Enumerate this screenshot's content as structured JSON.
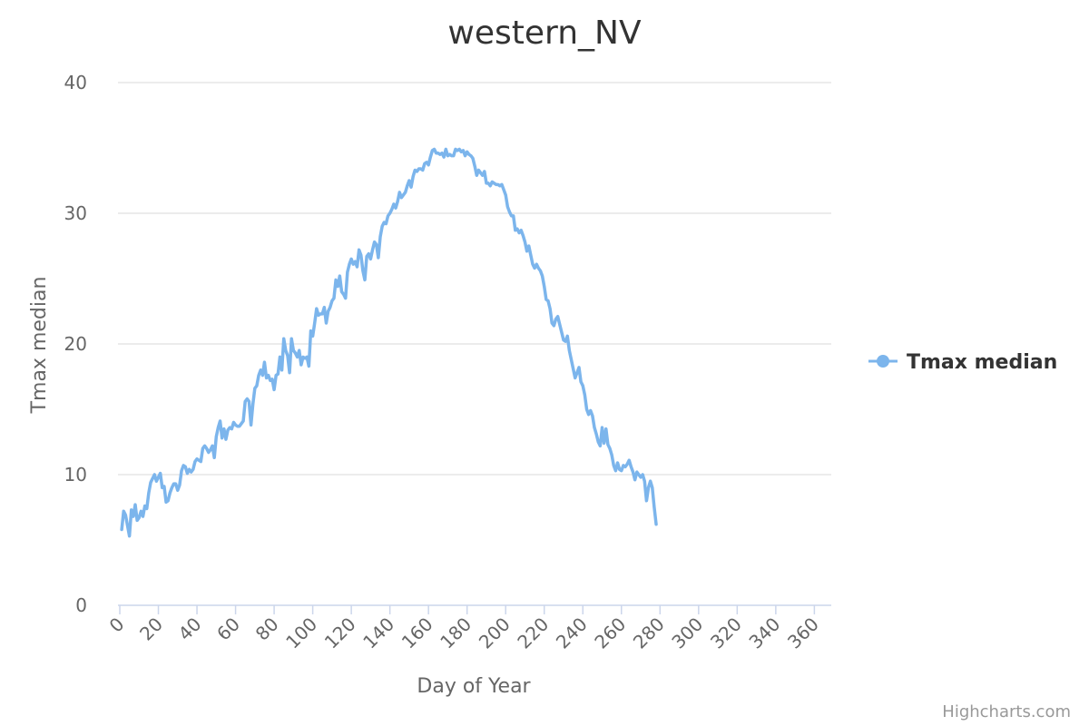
{
  "chart_data": {
    "type": "line",
    "title": "western_NV",
    "xlabel": "Day of Year",
    "ylabel": "Tmax median",
    "xlim": [
      0,
      365
    ],
    "ylim": [
      0,
      40
    ],
    "x_ticks": [
      0,
      20,
      40,
      60,
      80,
      100,
      120,
      140,
      160,
      180,
      200,
      220,
      240,
      260,
      280,
      300,
      320,
      340,
      360
    ],
    "y_ticks": [
      0,
      10,
      20,
      30,
      40
    ],
    "grid": true,
    "legend_position": "right",
    "credits": "Highcharts.com",
    "colors": {
      "series": "#7cb5ec",
      "grid": "#e6e6e6",
      "axis": "#ccd6eb"
    },
    "series": [
      {
        "name": "Tmax median",
        "x_start": 1,
        "values": [
          5.8,
          7.2,
          6.9,
          6.1,
          5.3,
          7.3,
          6.8,
          7.7,
          6.5,
          6.7,
          7.2,
          6.8,
          7.6,
          7.4,
          8.6,
          9.4,
          9.7,
          10.0,
          9.5,
          9.8,
          10.1,
          9.0,
          9.1,
          7.9,
          8.0,
          8.6,
          9.0,
          9.3,
          9.3,
          8.8,
          9.2,
          10.3,
          10.7,
          10.6,
          10.1,
          10.4,
          10.2,
          10.4,
          11.0,
          11.2,
          11.1,
          11.0,
          12.0,
          12.2,
          12.0,
          11.7,
          11.9,
          12.2,
          11.3,
          12.9,
          13.6,
          14.1,
          12.8,
          13.5,
          12.7,
          13.4,
          13.6,
          13.5,
          14.0,
          13.8,
          13.7,
          13.7,
          13.9,
          14.1,
          15.6,
          15.8,
          15.6,
          13.8,
          15.4,
          16.6,
          16.8,
          17.6,
          18.0,
          17.6,
          18.6,
          17.4,
          17.6,
          17.2,
          17.3,
          16.5,
          17.6,
          17.7,
          19.0,
          18.0,
          20.4,
          19.5,
          19.1,
          17.8,
          20.4,
          19.5,
          19.3,
          19.0,
          19.5,
          18.4,
          19.0,
          18.9,
          19.0,
          18.3,
          21.0,
          20.6,
          21.6,
          22.7,
          22.2,
          22.3,
          22.3,
          22.8,
          21.6,
          22.5,
          22.8,
          23.3,
          23.5,
          24.9,
          24.4,
          25.2,
          24.0,
          23.8,
          23.5,
          25.5,
          26.1,
          26.5,
          26.1,
          26.3,
          25.9,
          27.2,
          26.8,
          25.6,
          24.9,
          26.7,
          26.9,
          26.5,
          27.2,
          27.8,
          27.6,
          26.6,
          28.2,
          29.0,
          29.3,
          29.2,
          29.8,
          30.0,
          30.3,
          30.7,
          30.4,
          30.9,
          31.6,
          31.2,
          31.4,
          31.6,
          32.1,
          32.5,
          32.0,
          32.8,
          33.3,
          33.2,
          33.4,
          33.4,
          33.3,
          33.8,
          33.9,
          33.7,
          34.3,
          34.8,
          34.9,
          34.6,
          34.6,
          34.5,
          34.6,
          34.3,
          34.9,
          34.4,
          34.5,
          34.4,
          34.4,
          34.9,
          34.8,
          34.9,
          34.7,
          34.8,
          34.4,
          34.7,
          34.5,
          34.4,
          34.2,
          33.6,
          32.9,
          33.3,
          33.1,
          32.9,
          33.2,
          32.3,
          32.3,
          32.1,
          32.4,
          32.3,
          32.2,
          32.2,
          32.1,
          32.2,
          31.8,
          31.4,
          30.5,
          30.1,
          29.8,
          29.8,
          28.7,
          28.8,
          28.5,
          28.7,
          28.3,
          27.8,
          27.1,
          27.5,
          26.8,
          26.1,
          25.8,
          26.1,
          25.8,
          25.6,
          25.2,
          24.4,
          23.4,
          23.3,
          22.7,
          21.6,
          21.4,
          21.9,
          22.1,
          21.5,
          20.9,
          20.3,
          20.2,
          20.6,
          19.5,
          18.8,
          18.1,
          17.4,
          17.8,
          18.2,
          17.1,
          16.8,
          16.1,
          15.0,
          14.6,
          14.9,
          14.5,
          13.6,
          13.1,
          12.5,
          12.2,
          13.6,
          12.4,
          13.5,
          12.3,
          12.0,
          11.5,
          10.7,
          10.3,
          10.9,
          10.4,
          10.3,
          10.7,
          10.6,
          10.8,
          11.1,
          10.6,
          10.2,
          9.6,
          10.2,
          10.0,
          9.8,
          10.0,
          9.5,
          8.0,
          9.0,
          9.5,
          9.0,
          7.5,
          6.2
        ]
      }
    ]
  }
}
